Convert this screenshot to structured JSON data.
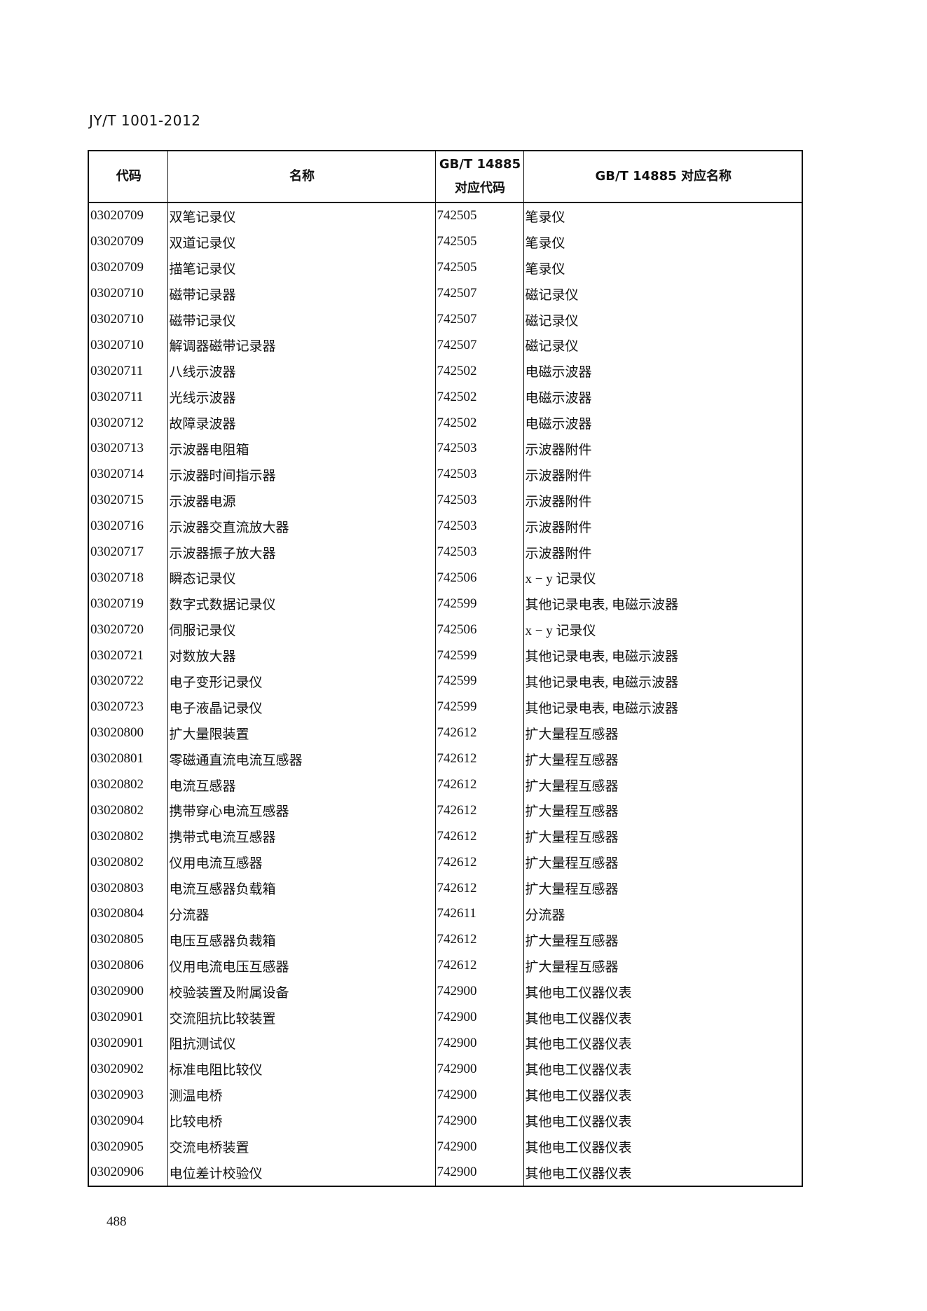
{
  "header": {
    "doc_code": "JY/T 1001-2012"
  },
  "table": {
    "columns": [
      "代码",
      "名称",
      "GB/T 14885\n对应代码",
      "GB/T 14885 对应名称"
    ],
    "column_lines": [
      [
        "GB/T 14885",
        "对应代码"
      ]
    ],
    "rows": [
      [
        "03020709",
        "双笔记录仪",
        "742505",
        "笔录仪"
      ],
      [
        "03020709",
        "双道记录仪",
        "742505",
        "笔录仪"
      ],
      [
        "03020709",
        "描笔记录仪",
        "742505",
        "笔录仪"
      ],
      [
        "03020710",
        "磁带记录器",
        "742507",
        "磁记录仪"
      ],
      [
        "03020710",
        "磁带记录仪",
        "742507",
        "磁记录仪"
      ],
      [
        "03020710",
        "解调器磁带记录器",
        "742507",
        "磁记录仪"
      ],
      [
        "03020711",
        "八线示波器",
        "742502",
        "电磁示波器"
      ],
      [
        "03020711",
        "光线示波器",
        "742502",
        "电磁示波器"
      ],
      [
        "03020712",
        "故障录波器",
        "742502",
        "电磁示波器"
      ],
      [
        "03020713",
        "示波器电阻箱",
        "742503",
        "示波器附件"
      ],
      [
        "03020714",
        "示波器时间指示器",
        "742503",
        "示波器附件"
      ],
      [
        "03020715",
        "示波器电源",
        "742503",
        "示波器附件"
      ],
      [
        "03020716",
        "示波器交直流放大器",
        "742503",
        "示波器附件"
      ],
      [
        "03020717",
        "示波器振子放大器",
        "742503",
        "示波器附件"
      ],
      [
        "03020718",
        "瞬态记录仪",
        "742506",
        "x − y 记录仪"
      ],
      [
        "03020719",
        "数字式数据记录仪",
        "742599",
        "其他记录电表, 电磁示波器"
      ],
      [
        "03020720",
        "伺服记录仪",
        "742506",
        "x − y 记录仪"
      ],
      [
        "03020721",
        "对数放大器",
        "742599",
        "其他记录电表, 电磁示波器"
      ],
      [
        "03020722",
        "电子变形记录仪",
        "742599",
        "其他记录电表, 电磁示波器"
      ],
      [
        "03020723",
        "电子液晶记录仪",
        "742599",
        "其他记录电表, 电磁示波器"
      ],
      [
        "03020800",
        "扩大量限装置",
        "742612",
        "扩大量程互感器"
      ],
      [
        "03020801",
        "零磁通直流电流互感器",
        "742612",
        "扩大量程互感器"
      ],
      [
        "03020802",
        "电流互感器",
        "742612",
        "扩大量程互感器"
      ],
      [
        "03020802",
        "携带穿心电流互感器",
        "742612",
        "扩大量程互感器"
      ],
      [
        "03020802",
        "携带式电流互感器",
        "742612",
        "扩大量程互感器"
      ],
      [
        "03020802",
        "仪用电流互感器",
        "742612",
        "扩大量程互感器"
      ],
      [
        "03020803",
        "电流互感器负载箱",
        "742612",
        "扩大量程互感器"
      ],
      [
        "03020804",
        "分流器",
        "742611",
        "分流器"
      ],
      [
        "03020805",
        "电压互感器负裁箱",
        "742612",
        "扩大量程互感器"
      ],
      [
        "03020806",
        "仪用电流电压互感器",
        "742612",
        "扩大量程互感器"
      ],
      [
        "03020900",
        "校验装置及附属设备",
        "742900",
        "其他电工仪器仪表"
      ],
      [
        "03020901",
        "交流阻抗比较装置",
        "742900",
        "其他电工仪器仪表"
      ],
      [
        "03020901",
        "阻抗测试仪",
        "742900",
        "其他电工仪器仪表"
      ],
      [
        "03020902",
        "标准电阻比较仪",
        "742900",
        "其他电工仪器仪表"
      ],
      [
        "03020903",
        "测温电桥",
        "742900",
        "其他电工仪器仪表"
      ],
      [
        "03020904",
        "比较电桥",
        "742900",
        "其他电工仪器仪表"
      ],
      [
        "03020905",
        "交流电桥装置",
        "742900",
        "其他电工仪器仪表"
      ],
      [
        "03020906",
        "电位差计校验仪",
        "742900",
        "其他电工仪器仪表"
      ]
    ]
  },
  "footer": {
    "page_number": "488"
  }
}
